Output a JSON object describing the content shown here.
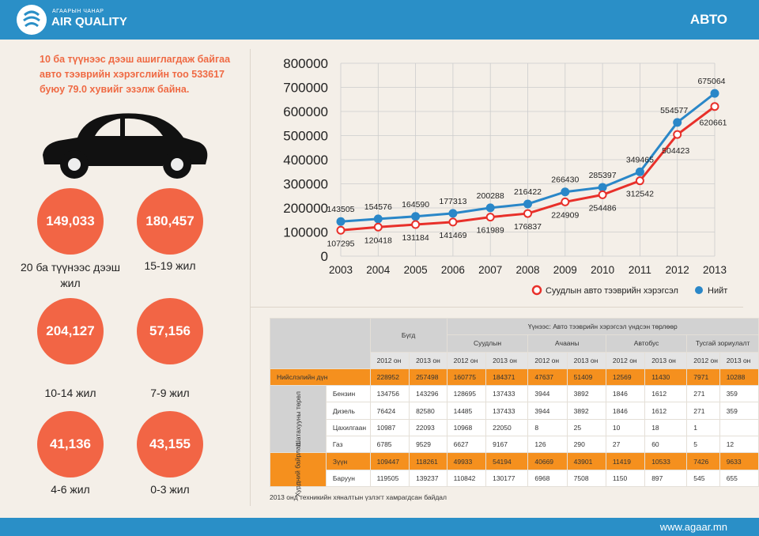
{
  "header": {
    "logo_small": "АГААРЫН ЧАНАР",
    "logo_big": "AIR QUALITY",
    "title": "АВТО"
  },
  "footer": {
    "url": "www.agaar.mn"
  },
  "intro": "10 ба түүнээс дээш ашиглагдаж байгаа авто тээврийн хэрэгслийн тоо 533617 буюу 79.0 хувийг эзэлж байна.",
  "age_groups": [
    {
      "value": "149,033",
      "label": "20 ба түүнээс дээш жил"
    },
    {
      "value": "180,457",
      "label": "15-19 жил"
    },
    {
      "value": "204,127",
      "label": "10-14 жил"
    },
    {
      "value": "57,156",
      "label": "7-9 жил"
    },
    {
      "value": "41,136",
      "label": "4-6 жил"
    },
    {
      "value": "43,155",
      "label": "0-3 жил"
    }
  ],
  "colors": {
    "total": "#2a87c8",
    "passenger": "#e8302a",
    "orange": "#f5901e",
    "circle": "#f26545"
  },
  "chart_data": {
    "type": "line",
    "x": [
      "2003",
      "2004",
      "2005",
      "2006",
      "2007",
      "2008",
      "2009",
      "2010",
      "2011",
      "2012",
      "2013"
    ],
    "yticks": [
      "800000",
      "700000",
      "600000",
      "500000",
      "400000",
      "300000",
      "200000",
      "100000",
      "0"
    ],
    "ylim": [
      0,
      800000
    ],
    "series": [
      {
        "name": "Нийт",
        "values": [
          143505,
          154576,
          164590,
          177313,
          200288,
          216422,
          266430,
          285397,
          349465,
          554577,
          675064
        ]
      },
      {
        "name": "Суудлын авто тээврийн хэрэгсэл",
        "values": [
          107295,
          120418,
          131184,
          141469,
          161989,
          176837,
          224909,
          254486,
          312542,
          504423,
          620661
        ]
      }
    ],
    "legend": [
      "Суудлын авто тээврийн хэрэгсэл",
      "Нийт"
    ]
  },
  "table": {
    "h_total": "Бүгд",
    "h_group": "Үүнээс: Авто тээврийн хэрэгсэл үндсэн төрлөөр",
    "h_types": [
      "Суудлын",
      "Ачааны",
      "Автобус",
      "Тусгай зориулалт"
    ],
    "h_years": [
      "2012 он",
      "2013 он"
    ],
    "g_fuel": "Шатахууны төрөл",
    "g_wheel": "Хурдний байрлал",
    "total_row": {
      "label": "Нийслэлийн дүн",
      "cells": [
        "228952",
        "257498",
        "160775",
        "184371",
        "47637",
        "51409",
        "12569",
        "11430",
        "7971",
        "10288"
      ]
    },
    "fuel_rows": [
      {
        "label": "Бензин",
        "cells": [
          "134756",
          "143296",
          "128695",
          "137433",
          "3944",
          "3892",
          "1846",
          "1612",
          "271",
          "359"
        ]
      },
      {
        "label": "Дизель",
        "cells": [
          "76424",
          "82580",
          "14485",
          "137433",
          "3944",
          "3892",
          "1846",
          "1612",
          "271",
          "359"
        ]
      },
      {
        "label": "Цахилгаан",
        "cells": [
          "10987",
          "22093",
          "10968",
          "22050",
          "8",
          "25",
          "10",
          "18",
          "1",
          ""
        ]
      },
      {
        "label": "Газ",
        "cells": [
          "6785",
          "9529",
          "6627",
          "9167",
          "126",
          "290",
          "27",
          "60",
          "5",
          "12"
        ]
      }
    ],
    "wheel_rows": [
      {
        "label": "Зүүн",
        "cells": [
          "109447",
          "118261",
          "49933",
          "54194",
          "40669",
          "43901",
          "11419",
          "10533",
          "7426",
          "9633"
        ]
      },
      {
        "label": "Баруун",
        "cells": [
          "119505",
          "139237",
          "110842",
          "130177",
          "6968",
          "7508",
          "1150",
          "897",
          "545",
          "655"
        ]
      }
    ],
    "note": "2013 онд техникийн хяналтын үзлэгт хамрагдсан байдал"
  }
}
